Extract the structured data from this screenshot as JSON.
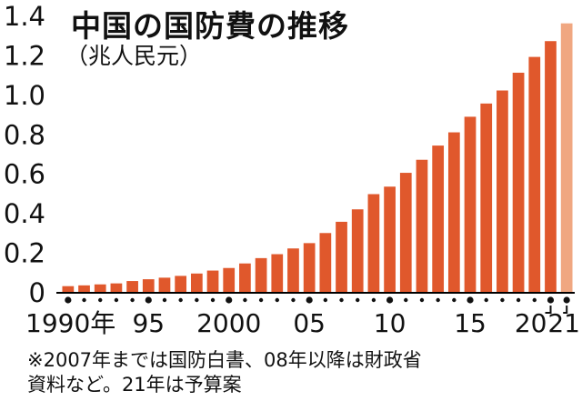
{
  "chart_data": {
    "type": "bar",
    "title": "中国の国防費の推移",
    "unit_label": "（兆人民元）",
    "x": [
      1990,
      1991,
      1992,
      1993,
      1994,
      1995,
      1996,
      1997,
      1998,
      1999,
      2000,
      2001,
      2002,
      2003,
      2004,
      2005,
      2006,
      2007,
      2008,
      2009,
      2010,
      2011,
      2012,
      2013,
      2014,
      2015,
      2016,
      2017,
      2018,
      2019,
      2020,
      2021
    ],
    "values": [
      0.029,
      0.033,
      0.038,
      0.043,
      0.055,
      0.064,
      0.072,
      0.081,
      0.093,
      0.108,
      0.121,
      0.144,
      0.171,
      0.191,
      0.22,
      0.247,
      0.298,
      0.355,
      0.418,
      0.495,
      0.533,
      0.603,
      0.669,
      0.741,
      0.808,
      0.887,
      0.954,
      1.02,
      1.11,
      1.19,
      1.27,
      1.36
    ],
    "budget_years": [
      2021
    ],
    "ylim": [
      0,
      1.4
    ],
    "yticks": [
      0,
      0.2,
      0.4,
      0.6,
      0.8,
      1.0,
      1.2,
      1.4
    ],
    "ytick_labels": [
      "0",
      "0.2",
      "0.4",
      "0.6",
      "0.8",
      "1.0",
      "1.2",
      "1.4"
    ],
    "xtick_labels": [
      {
        "year": 1990,
        "label": "1990年"
      },
      {
        "year": 1995,
        "label": "95"
      },
      {
        "year": 2000,
        "label": "2000"
      },
      {
        "year": 2005,
        "label": "05"
      },
      {
        "year": 2010,
        "label": "10"
      },
      {
        "year": 2015,
        "label": "15"
      },
      {
        "year": 2020,
        "label": "20"
      },
      {
        "year": 2021,
        "label": "21"
      }
    ],
    "grid": false,
    "colors": {
      "bar": "#e0582c",
      "budget_bar": "#f0a781",
      "axis": "#000000"
    }
  },
  "note": {
    "line1": "※2007年までは国防白書、08年以降は財政省",
    "line2": "資料など。21年は予算案"
  }
}
